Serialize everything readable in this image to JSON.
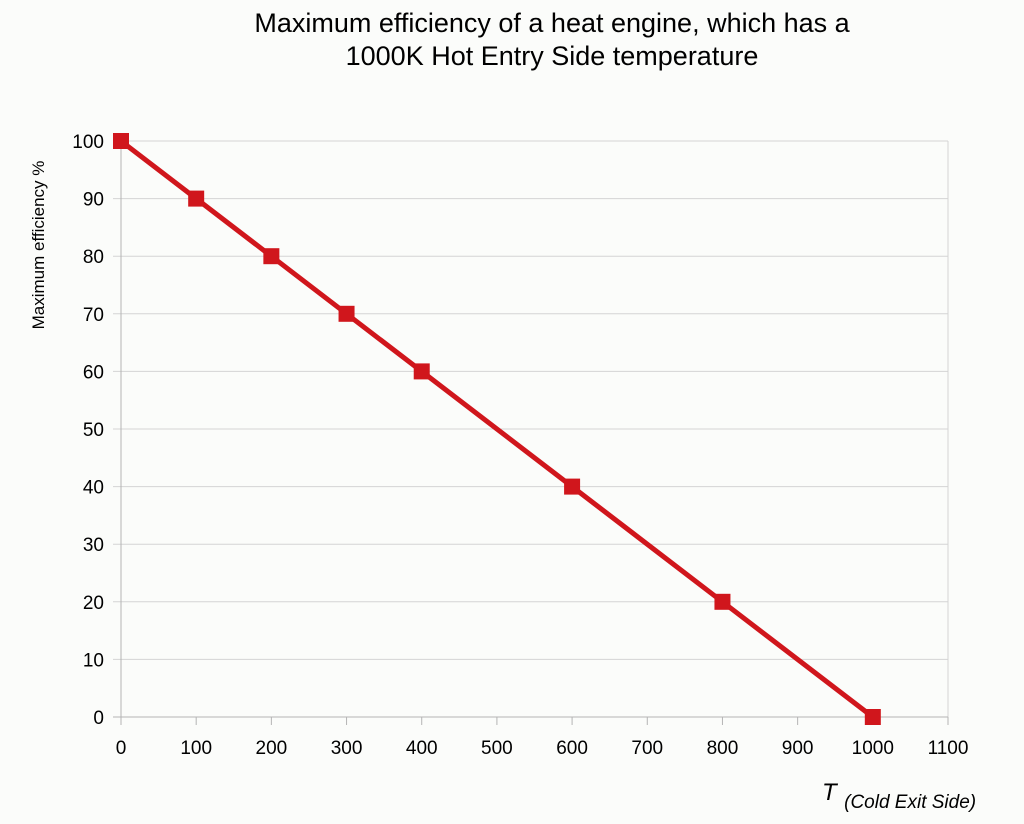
{
  "chart_data": {
    "type": "line",
    "title": [
      "Maximum efficiency of a heat engine, which has a",
      "1000K Hot Entry Side temperature"
    ],
    "xlabel": {
      "main": "T",
      "subscript": "(Cold Exit Side)"
    },
    "ylabel": "Maximum efficiency %",
    "xlim": [
      0,
      1100
    ],
    "ylim": [
      0,
      100
    ],
    "xticks": [
      0,
      100,
      200,
      300,
      400,
      500,
      600,
      700,
      800,
      900,
      1000,
      1100
    ],
    "yticks": [
      0,
      10,
      20,
      30,
      40,
      50,
      60,
      70,
      80,
      90,
      100
    ],
    "grid": "horizontal",
    "legend": "none",
    "series": [
      {
        "name": "Maximum efficiency",
        "color": "#d0161c",
        "marker": "square",
        "x": [
          0,
          100,
          200,
          300,
          400,
          600,
          800,
          1000
        ],
        "y": [
          100,
          90,
          80,
          70,
          60,
          40,
          20,
          0
        ]
      }
    ]
  }
}
